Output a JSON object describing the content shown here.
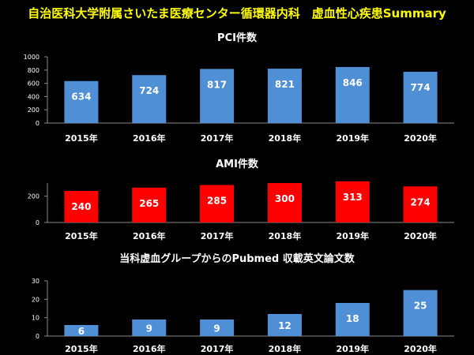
{
  "slide": {
    "title": "自治医科大学附属さいたま医療センター循環器内科　虚血性心疾患Summary"
  },
  "colors": {
    "background": "#000000",
    "title": "#ffff00",
    "blue_bar": "#4f8fd6",
    "red_bar": "#ff0000",
    "text": "#ffffff"
  },
  "chart_data": [
    {
      "type": "bar",
      "title": "PCI件数",
      "categories": [
        "2015年",
        "2016年",
        "2017年",
        "2018年",
        "2019年",
        "2020年"
      ],
      "values": [
        634,
        724,
        817,
        821,
        846,
        774
      ],
      "ylim": [
        0,
        1000
      ],
      "yticks": [
        0,
        200,
        400,
        600,
        800,
        1000
      ],
      "color": "#4f8fd6",
      "grid": false,
      "data_labels": true
    },
    {
      "type": "bar",
      "title": "AMI件数",
      "categories": [
        "2015年",
        "2016年",
        "2017年",
        "2018年",
        "2019年",
        "2020年"
      ],
      "values": [
        240,
        265,
        285,
        300,
        313,
        274
      ],
      "ylim": [
        0,
        300
      ],
      "yticks": [
        0,
        200
      ],
      "color": "#ff0000",
      "grid": false,
      "data_labels": true
    },
    {
      "type": "bar",
      "title": "当科虚血グループからのPubmed  収載英文論文数",
      "categories": [
        "2015年",
        "2016年",
        "2017年",
        "2018年",
        "2019年",
        "2020年"
      ],
      "values": [
        6,
        9,
        9,
        12,
        18,
        25
      ],
      "ylim": [
        0,
        30
      ],
      "yticks": [
        0,
        10,
        20,
        30
      ],
      "color": "#4f8fd6",
      "grid": false,
      "data_labels": true
    }
  ]
}
